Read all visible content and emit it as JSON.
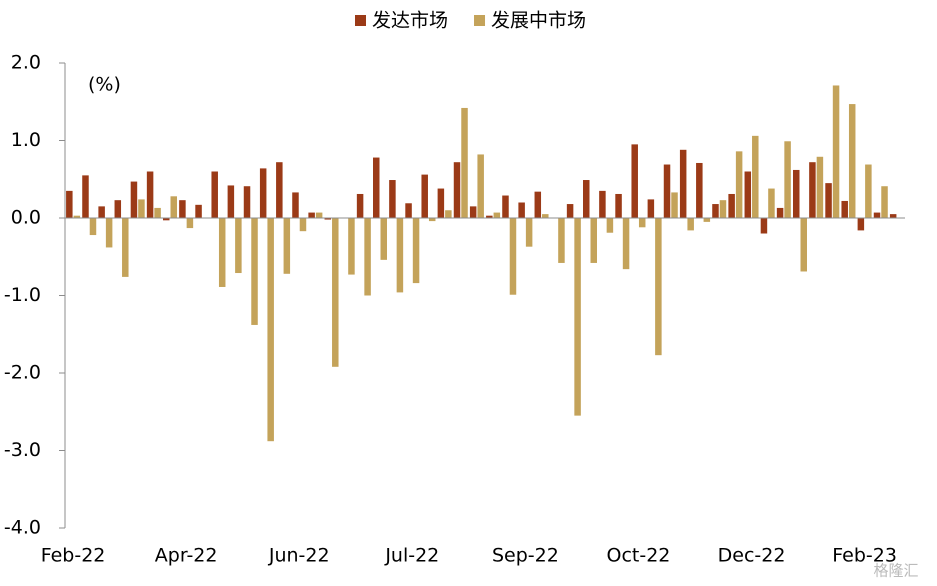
{
  "chart_data": {
    "type": "bar",
    "annotation": "(%)",
    "watermark": "格隆汇",
    "categories": [
      "Feb-22",
      null,
      null,
      null,
      null,
      null,
      null,
      "Apr-22",
      null,
      null,
      null,
      null,
      null,
      null,
      "Jun-22",
      null,
      null,
      null,
      null,
      null,
      null,
      "Jul-22",
      null,
      null,
      null,
      null,
      null,
      null,
      "Sep-22",
      null,
      null,
      null,
      null,
      null,
      null,
      "Oct-22",
      null,
      null,
      null,
      null,
      null,
      null,
      "Dec-22",
      null,
      null,
      null,
      null,
      null,
      null,
      "Feb-23",
      null,
      null
    ],
    "series": [
      {
        "name": "发达市场",
        "color": "#9b3a17",
        "values": [
          0.35,
          0.55,
          0.15,
          0.23,
          0.47,
          0.6,
          -0.03,
          0.23,
          0.17,
          0.6,
          0.42,
          0.41,
          0.64,
          0.72,
          0.33,
          0.07,
          -0.02,
          0,
          0.31,
          0.78,
          0.49,
          0.19,
          0.56,
          0.38,
          0.72,
          0.15,
          0.03,
          0.29,
          0.2,
          0.34,
          0,
          0.18,
          0.49,
          0.35,
          0.31,
          0.95,
          0.24,
          0.69,
          0.88,
          0.71,
          0.18,
          0.31,
          0.6,
          -0.2,
          0.13,
          0.62,
          0.72,
          0.45,
          0.22,
          -0.16,
          0.07,
          0.05
        ]
      },
      {
        "name": "发展中市场",
        "color": "#c4a35a",
        "values": [
          0.03,
          -0.22,
          -0.38,
          -0.76,
          0.24,
          0.13,
          0.28,
          -0.13,
          0,
          -0.89,
          -0.71,
          -1.38,
          -2.88,
          -0.72,
          -0.17,
          0.07,
          -1.92,
          -0.73,
          -1.0,
          -0.54,
          -0.96,
          -0.84,
          -0.04,
          0.1,
          1.42,
          0.82,
          0.07,
          -0.99,
          -0.37,
          0.05,
          -0.58,
          -2.55,
          -0.58,
          -0.19,
          -0.66,
          -0.12,
          -1.77,
          0.33,
          -0.16,
          -0.05,
          0.23,
          0.86,
          1.06,
          0.38,
          0.99,
          -0.69,
          0.79,
          1.71,
          1.47,
          0.69,
          0.41,
          0
        ]
      }
    ],
    "ylim": [
      -4,
      2
    ],
    "yticks": [
      {
        "value": -4,
        "label": "-4.0"
      },
      {
        "value": -3,
        "label": "-3.0"
      },
      {
        "value": -2,
        "label": "-2.0"
      },
      {
        "value": -1,
        "label": "-1.0"
      },
      {
        "value": 0,
        "label": "0.0"
      },
      {
        "value": 1,
        "label": "1.0"
      },
      {
        "value": 2,
        "label": "2.0"
      }
    ],
    "legend": "top"
  }
}
